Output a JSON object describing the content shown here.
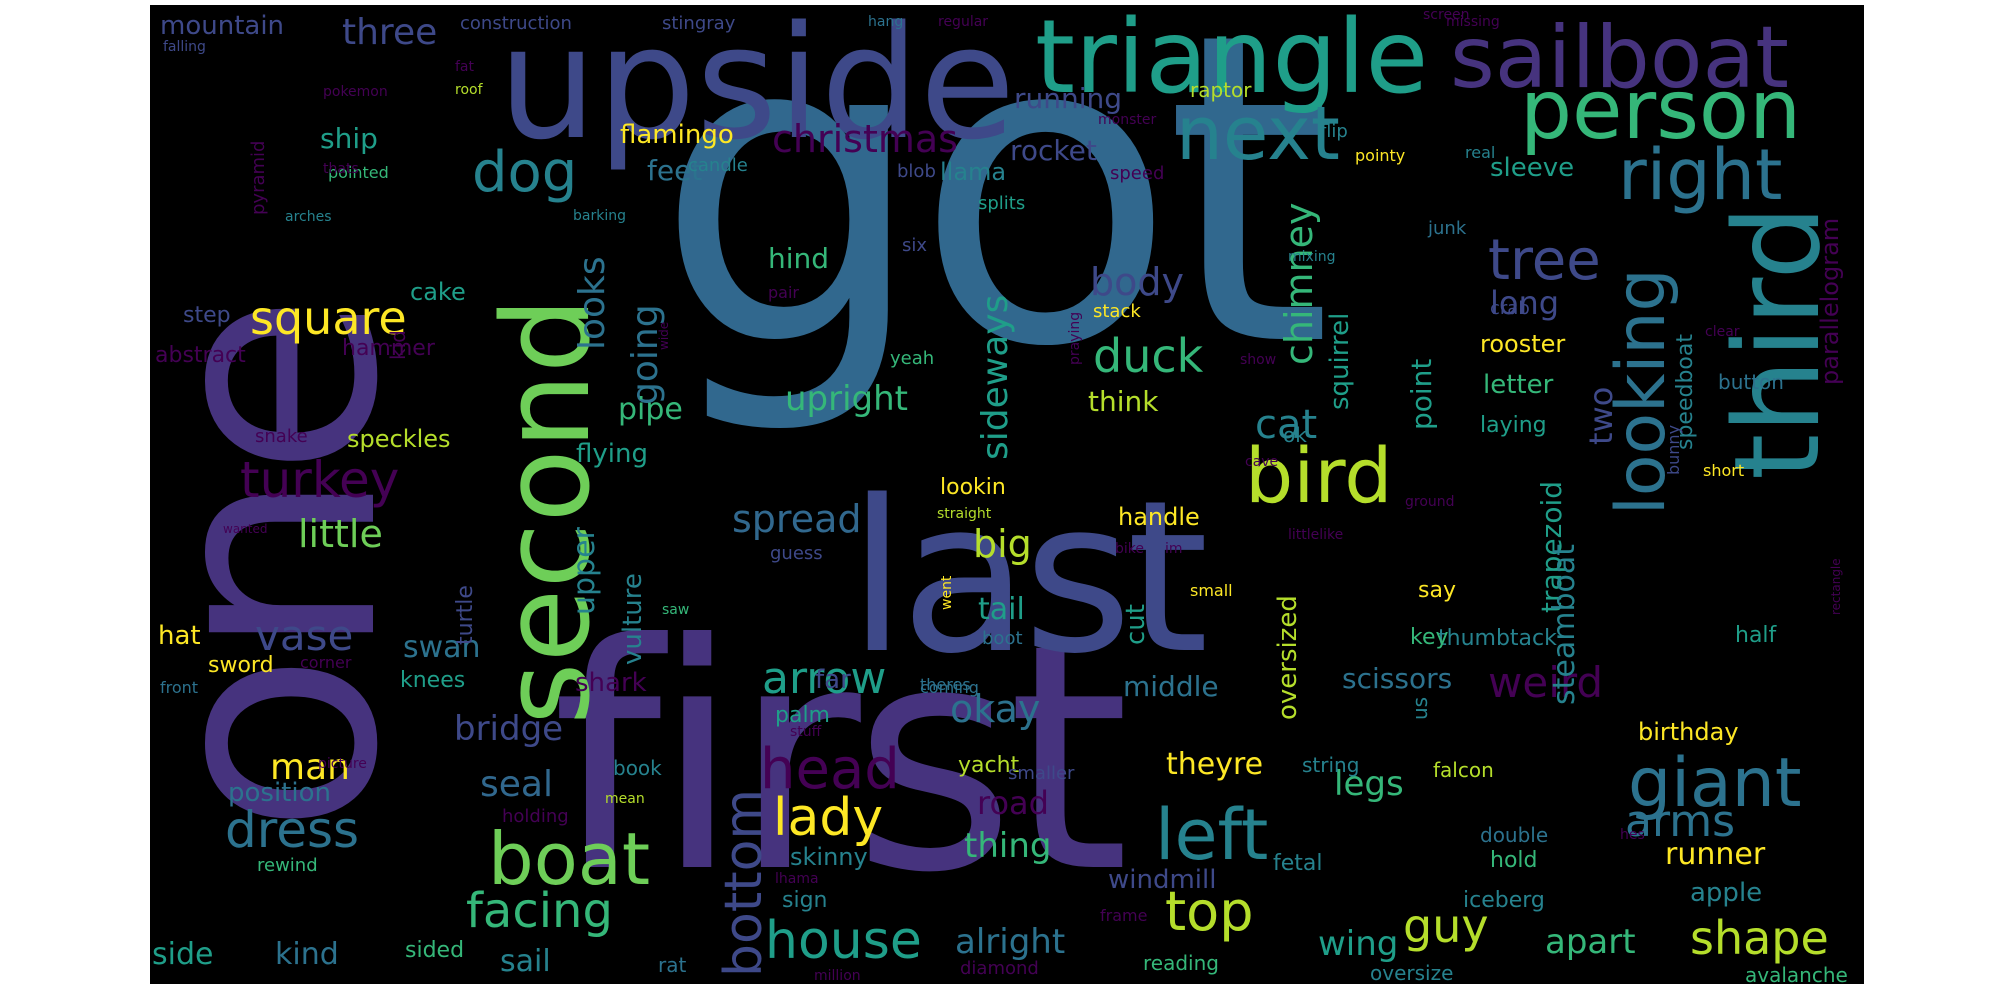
{
  "palette": {
    "background": "#000000",
    "dark_purple": "#440154",
    "purple": "#46337e",
    "indigo": "#3e4989",
    "blue": "#31688e",
    "steel": "#2c728e",
    "teal": "#26828e",
    "cyan": "#1f9e89",
    "green": "#35b779",
    "lime": "#6ece58",
    "yellowgreen": "#b5de2b",
    "yellow": "#fde725"
  },
  "words": [
    {
      "text": "got"
    },
    {
      "text": "one"
    },
    {
      "text": "first"
    },
    {
      "text": "last"
    },
    {
      "text": "upside"
    },
    {
      "text": "third"
    },
    {
      "text": "second"
    },
    {
      "text": "triangle"
    },
    {
      "text": "sailboat"
    },
    {
      "text": "person"
    },
    {
      "text": "next"
    },
    {
      "text": "bird"
    },
    {
      "text": "right"
    },
    {
      "text": "looking"
    },
    {
      "text": "giant"
    },
    {
      "text": "boat"
    },
    {
      "text": "left"
    },
    {
      "text": "dog"
    },
    {
      "text": "tree"
    },
    {
      "text": "head"
    },
    {
      "text": "lady"
    },
    {
      "text": "top"
    },
    {
      "text": "house"
    },
    {
      "text": "bottom"
    },
    {
      "text": "turkey"
    },
    {
      "text": "square"
    },
    {
      "text": "dress"
    },
    {
      "text": "duck"
    },
    {
      "text": "shape"
    },
    {
      "text": "guy"
    },
    {
      "text": "facing"
    },
    {
      "text": "arrow"
    },
    {
      "text": "arms"
    },
    {
      "text": "weird"
    },
    {
      "text": "vase"
    },
    {
      "text": "body"
    },
    {
      "text": "chimney"
    },
    {
      "text": "christmas"
    },
    {
      "text": "cat"
    },
    {
      "text": "spread"
    },
    {
      "text": "little"
    },
    {
      "text": "three"
    },
    {
      "text": "okay"
    },
    {
      "text": "big"
    },
    {
      "text": "looks"
    },
    {
      "text": "going"
    },
    {
      "text": "sideways"
    },
    {
      "text": "upright"
    },
    {
      "text": "man"
    },
    {
      "text": "seal"
    },
    {
      "text": "bridge"
    },
    {
      "text": "legs"
    },
    {
      "text": "thing"
    },
    {
      "text": "long"
    },
    {
      "text": "two"
    },
    {
      "text": "trapezoid"
    },
    {
      "text": "alright"
    },
    {
      "text": "apart"
    },
    {
      "text": "runner"
    },
    {
      "text": "road"
    },
    {
      "text": "mountain"
    },
    {
      "text": "hind"
    },
    {
      "text": "running"
    },
    {
      "text": "rocket"
    },
    {
      "text": "wing"
    },
    {
      "text": "kind"
    },
    {
      "text": "side"
    },
    {
      "text": "sail"
    },
    {
      "text": "pipe"
    },
    {
      "text": "tail"
    },
    {
      "text": "upper"
    },
    {
      "text": "theyre"
    },
    {
      "text": "point"
    },
    {
      "text": "feet"
    },
    {
      "text": "ship"
    },
    {
      "text": "flamingo"
    },
    {
      "text": "swan"
    },
    {
      "text": "oversized"
    },
    {
      "text": "squirrel"
    },
    {
      "text": "steamboat"
    },
    {
      "text": "hat"
    },
    {
      "text": "windmill"
    },
    {
      "text": "middle"
    },
    {
      "text": "scissors"
    },
    {
      "text": "vulture"
    },
    {
      "text": "flying"
    },
    {
      "text": "cake"
    },
    {
      "text": "sleeve"
    },
    {
      "text": "letter"
    },
    {
      "text": "think"
    },
    {
      "text": "shark"
    },
    {
      "text": "hammer"
    },
    {
      "text": "speckles"
    },
    {
      "text": "parallelogram"
    },
    {
      "text": "position"
    },
    {
      "text": "cut"
    },
    {
      "text": "rooster"
    },
    {
      "text": "skinny"
    },
    {
      "text": "handle"
    },
    {
      "text": "apple"
    },
    {
      "text": "abstract"
    },
    {
      "text": "llama"
    },
    {
      "text": "birthday"
    },
    {
      "text": "lookin"
    },
    {
      "text": "yacht"
    },
    {
      "text": "say"
    },
    {
      "text": "hold"
    },
    {
      "text": "speedboat"
    },
    {
      "text": "turtle"
    },
    {
      "text": "sided"
    },
    {
      "text": "far"
    },
    {
      "text": "sword"
    },
    {
      "text": "palm"
    },
    {
      "text": "step"
    },
    {
      "text": "knees"
    },
    {
      "text": "laying"
    },
    {
      "text": "thumbtack"
    },
    {
      "text": "half"
    },
    {
      "text": "iceberg"
    },
    {
      "text": "sign"
    },
    {
      "text": "fetal"
    },
    {
      "text": "blob"
    },
    {
      "text": "splits"
    },
    {
      "text": "reading"
    },
    {
      "text": "key"
    },
    {
      "text": "yeah"
    },
    {
      "text": "rat"
    },
    {
      "text": "avalanche"
    },
    {
      "text": "button"
    },
    {
      "text": "ok"
    },
    {
      "text": "kid"
    },
    {
      "text": "stack"
    },
    {
      "text": "flip"
    },
    {
      "text": "raptor"
    },
    {
      "text": "double"
    },
    {
      "text": "book"
    },
    {
      "text": "string"
    },
    {
      "text": "falcon"
    },
    {
      "text": "holding"
    },
    {
      "text": "pyramid"
    },
    {
      "text": "oversize"
    },
    {
      "text": "diamond"
    },
    {
      "text": "boot"
    },
    {
      "text": "smaller"
    },
    {
      "text": "us"
    },
    {
      "text": "candle"
    },
    {
      "text": "speed"
    },
    {
      "text": "construction"
    },
    {
      "text": "stingray"
    },
    {
      "text": "junk"
    },
    {
      "text": "crab"
    },
    {
      "text": "snake"
    },
    {
      "text": "pointed"
    },
    {
      "text": "six"
    },
    {
      "text": "rewind"
    },
    {
      "text": "frame"
    },
    {
      "text": "pointy"
    },
    {
      "text": "guess"
    },
    {
      "text": "coming"
    },
    {
      "text": "short"
    },
    {
      "text": "small"
    },
    {
      "text": "pokemon"
    },
    {
      "text": "barking"
    },
    {
      "text": "mixing"
    },
    {
      "text": "bunny"
    },
    {
      "text": "thats"
    },
    {
      "text": "roof"
    },
    {
      "text": "corner"
    },
    {
      "text": "lhama"
    },
    {
      "text": "arches"
    },
    {
      "text": "real"
    },
    {
      "text": "monster"
    },
    {
      "text": "ground"
    },
    {
      "text": "bike"
    },
    {
      "text": "straight"
    },
    {
      "text": "stuff"
    },
    {
      "text": "picture"
    },
    {
      "text": "cave"
    },
    {
      "text": "saw"
    },
    {
      "text": "praying"
    },
    {
      "text": "pair"
    },
    {
      "text": "went"
    },
    {
      "text": "theres"
    },
    {
      "text": "front"
    },
    {
      "text": "regular"
    },
    {
      "text": "falling"
    },
    {
      "text": "hang"
    },
    {
      "text": "fat"
    },
    {
      "text": "hes"
    },
    {
      "text": "mean"
    },
    {
      "text": "im"
    },
    {
      "text": "missing"
    },
    {
      "text": "show"
    },
    {
      "text": "million"
    },
    {
      "text": "littlelike"
    },
    {
      "text": "screen"
    },
    {
      "text": "wanted"
    },
    {
      "text": "clear"
    },
    {
      "text": "wide"
    },
    {
      "text": "rectangle"
    }
  ]
}
